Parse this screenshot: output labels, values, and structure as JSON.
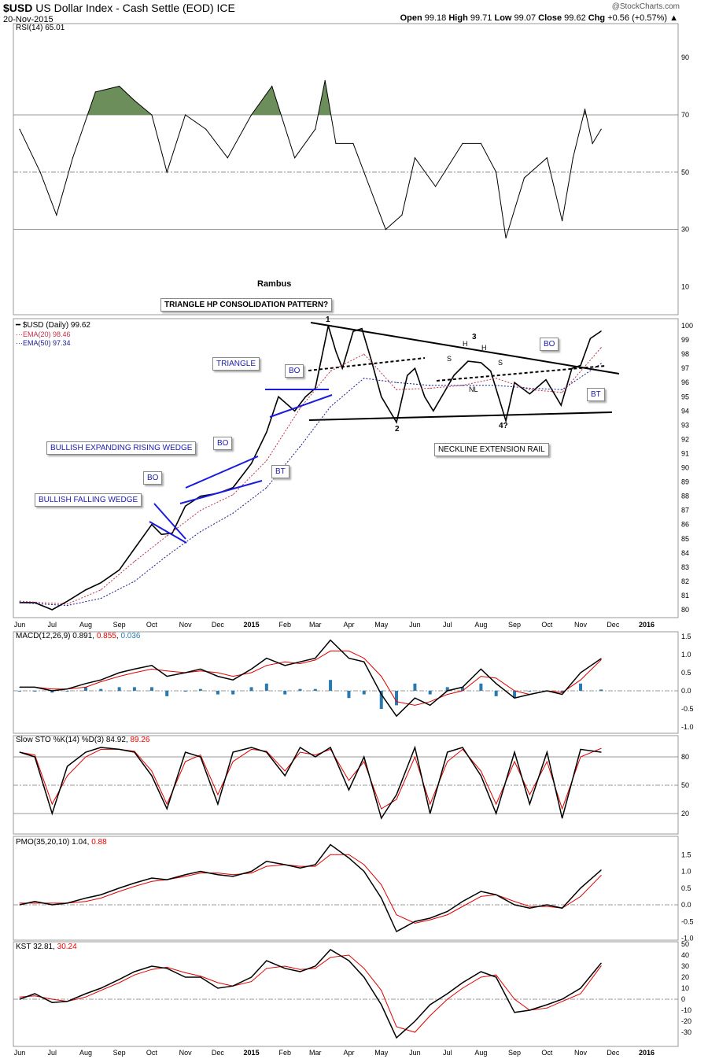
{
  "header": {
    "symbol": "$USD",
    "name": "US Dollar Index - Cash Settle (EOD) ICE",
    "date": "20-Nov-2015",
    "source": "@StockCharts.com",
    "open_label": "Open",
    "open": "99.18",
    "high_label": "High",
    "high": "99.71",
    "low_label": "Low",
    "low": "99.07",
    "close_label": "Close",
    "close": "99.62",
    "chg_label": "Chg",
    "chg": "+0.56 (+0.57%)"
  },
  "chart_data": [
    {
      "type": "line",
      "panel": "rsi",
      "title": "RSI(14) 65.01",
      "ylim": [
        0,
        100
      ],
      "yticks": [
        "90",
        "70",
        "50",
        "30",
        "10"
      ],
      "ytick_values": [
        90,
        70,
        50,
        30,
        10
      ],
      "overbought": 70,
      "oversold": 30,
      "fill_above": 70,
      "fill_color": "#6b8e5a",
      "x": [
        "2014-06-01",
        "2014-06-20",
        "2014-07-05",
        "2014-07-20",
        "2014-08-10",
        "2014-09-01",
        "2014-09-15",
        "2014-10-01",
        "2014-10-15",
        "2014-11-01",
        "2014-11-20",
        "2014-12-10",
        "2015-01-01",
        "2015-01-20",
        "2015-02-10",
        "2015-03-01",
        "2015-03-10",
        "2015-03-20",
        "2015-04-05",
        "2015-04-20",
        "2015-05-05",
        "2015-05-20",
        "2015-06-01",
        "2015-06-20",
        "2015-07-15",
        "2015-08-01",
        "2015-08-15",
        "2015-08-24",
        "2015-09-10",
        "2015-10-01",
        "2015-10-15",
        "2015-10-25",
        "2015-11-05",
        "2015-11-12",
        "2015-11-20"
      ],
      "values": [
        65,
        50,
        35,
        55,
        78,
        80,
        75,
        70,
        50,
        70,
        65,
        55,
        70,
        80,
        55,
        65,
        82,
        60,
        60,
        45,
        30,
        35,
        55,
        45,
        60,
        60,
        50,
        27,
        48,
        55,
        33,
        55,
        72,
        60,
        65
      ]
    },
    {
      "type": "line",
      "panel": "price",
      "annotation_header": "Rambus",
      "legend": [
        "$USD (Daily) 99.62",
        "EMA(20) 98.46",
        "EMA(50) 97.34"
      ],
      "ylim": [
        79.5,
        100.5
      ],
      "yticks": [
        "100",
        "99",
        "98",
        "97",
        "96",
        "95",
        "94",
        "93",
        "92",
        "91",
        "90",
        "89",
        "88",
        "87",
        "86",
        "85",
        "84",
        "83",
        "82",
        "81",
        "80"
      ],
      "xticks": [
        "Jun",
        "Jul",
        "Aug",
        "Sep",
        "Oct",
        "Nov",
        "Dec",
        "2015",
        "Feb",
        "Mar",
        "Apr",
        "May",
        "Jun",
        "Jul",
        "Aug",
        "Sep",
        "Oct",
        "Nov",
        "Dec",
        "2016"
      ],
      "series": [
        {
          "name": "$USD (Daily) 99.62",
          "color": "#000000",
          "x": [
            "2014-06-01",
            "2014-06-15",
            "2014-07-01",
            "2014-07-15",
            "2014-08-01",
            "2014-08-15",
            "2014-09-01",
            "2014-09-15",
            "2014-10-01",
            "2014-10-10",
            "2014-10-20",
            "2014-11-01",
            "2014-11-15",
            "2014-12-01",
            "2014-12-15",
            "2015-01-01",
            "2015-01-15",
            "2015-01-26",
            "2015-02-10",
            "2015-02-20",
            "2015-03-01",
            "2015-03-13",
            "2015-03-20",
            "2015-03-26",
            "2015-04-05",
            "2015-04-13",
            "2015-04-22",
            "2015-05-01",
            "2015-05-15",
            "2015-05-25",
            "2015-06-01",
            "2015-06-10",
            "2015-06-18",
            "2015-07-01",
            "2015-07-07",
            "2015-07-20",
            "2015-08-01",
            "2015-08-10",
            "2015-08-24",
            "2015-09-01",
            "2015-09-15",
            "2015-09-30",
            "2015-10-14",
            "2015-10-24",
            "2015-11-01",
            "2015-11-10",
            "2015-11-20"
          ],
          "values": [
            80.5,
            80.5,
            80.0,
            80.6,
            81.4,
            81.9,
            82.8,
            84.3,
            86.0,
            85.3,
            85.4,
            87.3,
            88.0,
            88.2,
            88.6,
            90.3,
            92.5,
            95.0,
            94.0,
            95.0,
            95.6,
            100.0,
            98.2,
            97.0,
            99.6,
            99.8,
            97.5,
            95.0,
            93.2,
            96.5,
            97.0,
            95.0,
            94.0,
            95.7,
            96.5,
            97.5,
            97.4,
            96.8,
            93.3,
            96.0,
            95.2,
            96.2,
            94.4,
            97.0,
            97.2,
            99.1,
            99.62
          ]
        },
        {
          "name": "EMA(20) 98.46",
          "color": "#c0304a",
          "x": [
            "2014-06-01",
            "2014-07-15",
            "2014-08-15",
            "2014-09-15",
            "2014-10-15",
            "2014-11-15",
            "2014-12-15",
            "2015-01-15",
            "2015-02-15",
            "2015-03-15",
            "2015-04-15",
            "2015-05-15",
            "2015-06-15",
            "2015-07-15",
            "2015-08-15",
            "2015-09-15",
            "2015-10-15",
            "2015-11-20"
          ],
          "values": [
            80.6,
            80.4,
            81.4,
            83.4,
            85.2,
            87.0,
            88.1,
            90.5,
            94.2,
            96.8,
            98.0,
            95.5,
            95.6,
            95.8,
            96.3,
            95.5,
            95.3,
            98.46
          ]
        },
        {
          "name": "EMA(50) 97.34",
          "color": "#1a1a90",
          "x": [
            "2014-06-01",
            "2014-07-15",
            "2014-08-15",
            "2014-09-15",
            "2014-10-15",
            "2014-11-15",
            "2014-12-15",
            "2015-01-15",
            "2015-02-15",
            "2015-03-15",
            "2015-04-15",
            "2015-05-15",
            "2015-06-15",
            "2015-07-15",
            "2015-08-15",
            "2015-09-15",
            "2015-10-15",
            "2015-11-20"
          ],
          "values": [
            80.5,
            80.3,
            80.8,
            82.0,
            83.8,
            85.5,
            86.8,
            88.6,
            91.5,
            94.3,
            96.3,
            96.0,
            95.8,
            95.8,
            95.8,
            95.6,
            95.5,
            97.34
          ]
        }
      ],
      "annotations": [
        "TRIANGLE HP CONSOLIDATION PATTERN?",
        "TRIANGLE",
        "BO",
        "BO",
        "BO",
        "BO",
        "BT",
        "BT",
        "BULLISH EXPANDING RISING WEDGE",
        "BULLISH FALLING WEDGE",
        "NECKLINE EXTENSION RAIL",
        "1",
        "2",
        "3",
        "4?",
        "S",
        "H",
        "H",
        "S",
        "NL"
      ]
    },
    {
      "type": "line",
      "panel": "macd",
      "title": "MACD(12,26,9)",
      "macd_value": "0.891",
      "signal_value": "0.855",
      "hist_value": "0.036",
      "yticks": [
        "1.5",
        "1.0",
        "0.5",
        "0.0",
        "-0.5",
        "-1.0"
      ],
      "ylim": [
        -1.2,
        1.65
      ],
      "series": [
        {
          "name": "MACD",
          "color": "#000000",
          "values": [
            0.1,
            0.1,
            0.0,
            0.05,
            0.2,
            0.3,
            0.5,
            0.6,
            0.7,
            0.4,
            0.5,
            0.6,
            0.4,
            0.3,
            0.6,
            0.9,
            0.7,
            0.8,
            0.9,
            1.4,
            0.9,
            0.8,
            -0.1,
            -0.7,
            -0.2,
            -0.4,
            0.0,
            0.1,
            0.6,
            0.2,
            -0.2,
            -0.1,
            0.0,
            -0.1,
            0.5,
            0.89
          ]
        },
        {
          "name": "Signal",
          "color": "#e00000",
          "values": [
            0.1,
            0.1,
            0.05,
            0.05,
            0.1,
            0.25,
            0.4,
            0.5,
            0.6,
            0.55,
            0.5,
            0.55,
            0.5,
            0.4,
            0.5,
            0.7,
            0.8,
            0.75,
            0.85,
            1.1,
            1.1,
            0.9,
            0.4,
            -0.3,
            -0.4,
            -0.3,
            -0.1,
            0.0,
            0.4,
            0.35,
            0.0,
            -0.1,
            0.0,
            -0.05,
            0.3,
            0.855
          ]
        }
      ],
      "hist_color": "#2a7ab0"
    },
    {
      "type": "line",
      "panel": "sto",
      "title": "Slow STO %K(14) %D(3)",
      "k_value": "84.92",
      "d_value": "89.26",
      "yticks": [
        "80",
        "50",
        "20"
      ],
      "ylim": [
        0,
        100
      ],
      "series": [
        {
          "name": "%K",
          "color": "#000000",
          "values": [
            85,
            80,
            20,
            70,
            85,
            90,
            88,
            85,
            60,
            25,
            85,
            80,
            30,
            85,
            90,
            85,
            60,
            90,
            80,
            90,
            45,
            80,
            15,
            40,
            90,
            20,
            85,
            90,
            60,
            20,
            85,
            30,
            85,
            15,
            88,
            85
          ]
        },
        {
          "name": "%D",
          "color": "#e00000",
          "values": [
            85,
            82,
            30,
            60,
            80,
            88,
            88,
            86,
            65,
            30,
            75,
            82,
            40,
            75,
            88,
            86,
            65,
            85,
            82,
            88,
            55,
            75,
            25,
            35,
            80,
            30,
            75,
            88,
            65,
            30,
            75,
            40,
            75,
            25,
            80,
            89
          ]
        }
      ]
    },
    {
      "type": "line",
      "panel": "pmo",
      "title": "PMO(35,20,10)",
      "pmo_value": "1.04",
      "signal_value": "0.88",
      "yticks": [
        "1.5",
        "1.0",
        "0.5",
        "0.0",
        "-0.5",
        "-1.0"
      ],
      "ylim": [
        -1.05,
        2.0
      ],
      "series": [
        {
          "name": "PMO",
          "color": "#000000",
          "values": [
            0.0,
            0.1,
            0.0,
            0.05,
            0.2,
            0.3,
            0.5,
            0.65,
            0.8,
            0.75,
            0.9,
            1.0,
            0.9,
            0.85,
            1.0,
            1.3,
            1.2,
            1.1,
            1.2,
            1.8,
            1.4,
            1.0,
            0.2,
            -0.8,
            -0.5,
            -0.4,
            -0.2,
            0.1,
            0.4,
            0.3,
            0.0,
            -0.1,
            0.0,
            -0.1,
            0.5,
            1.04
          ]
        },
        {
          "name": "Signal",
          "color": "#e00000",
          "values": [
            0.05,
            0.05,
            0.05,
            0.05,
            0.1,
            0.2,
            0.4,
            0.55,
            0.7,
            0.75,
            0.85,
            0.95,
            0.95,
            0.9,
            0.95,
            1.15,
            1.2,
            1.15,
            1.15,
            1.5,
            1.5,
            1.2,
            0.6,
            -0.3,
            -0.55,
            -0.45,
            -0.3,
            -0.05,
            0.25,
            0.3,
            0.1,
            -0.05,
            -0.05,
            -0.1,
            0.25,
            0.88
          ]
        }
      ]
    },
    {
      "type": "line",
      "panel": "kst",
      "title": "KST",
      "kst_value": "32.81",
      "signal_value": "30.24",
      "yticks": [
        "50",
        "40",
        "30",
        "20",
        "10",
        "0",
        "-10",
        "-20",
        "-30"
      ],
      "ylim": [
        -40,
        60
      ],
      "series": [
        {
          "name": "KST",
          "color": "#000000",
          "values": [
            0,
            5,
            -3,
            -2,
            5,
            10,
            18,
            25,
            30,
            28,
            20,
            20,
            10,
            12,
            20,
            35,
            28,
            25,
            30,
            45,
            35,
            20,
            -5,
            -35,
            -20,
            -5,
            5,
            15,
            25,
            20,
            -12,
            -10,
            -5,
            0,
            10,
            32.81
          ]
        },
        {
          "name": "Signal",
          "color": "#e00000",
          "values": [
            2,
            3,
            0,
            -2,
            2,
            8,
            15,
            22,
            27,
            29,
            24,
            21,
            15,
            12,
            16,
            28,
            30,
            27,
            28,
            38,
            40,
            28,
            8,
            -25,
            -30,
            -15,
            0,
            10,
            20,
            22,
            0,
            -10,
            -8,
            -2,
            5,
            30.24
          ]
        }
      ]
    }
  ],
  "indicator_dates": [
    "2014-06-01",
    "2014-06-15",
    "2014-07-01",
    "2014-07-15",
    "2014-08-01",
    "2014-08-15",
    "2014-09-01",
    "2014-09-15",
    "2014-10-01",
    "2014-10-15",
    "2014-11-01",
    "2014-11-15",
    "2014-12-01",
    "2014-12-15",
    "2015-01-01",
    "2015-01-15",
    "2015-02-01",
    "2015-02-15",
    "2015-03-01",
    "2015-03-15",
    "2015-04-01",
    "2015-04-15",
    "2015-05-01",
    "2015-05-15",
    "2015-06-01",
    "2015-06-15",
    "2015-07-01",
    "2015-07-15",
    "2015-08-01",
    "2015-08-15",
    "2015-09-01",
    "2015-09-15",
    "2015-10-01",
    "2015-10-15",
    "2015-11-01",
    "2015-11-20"
  ]
}
